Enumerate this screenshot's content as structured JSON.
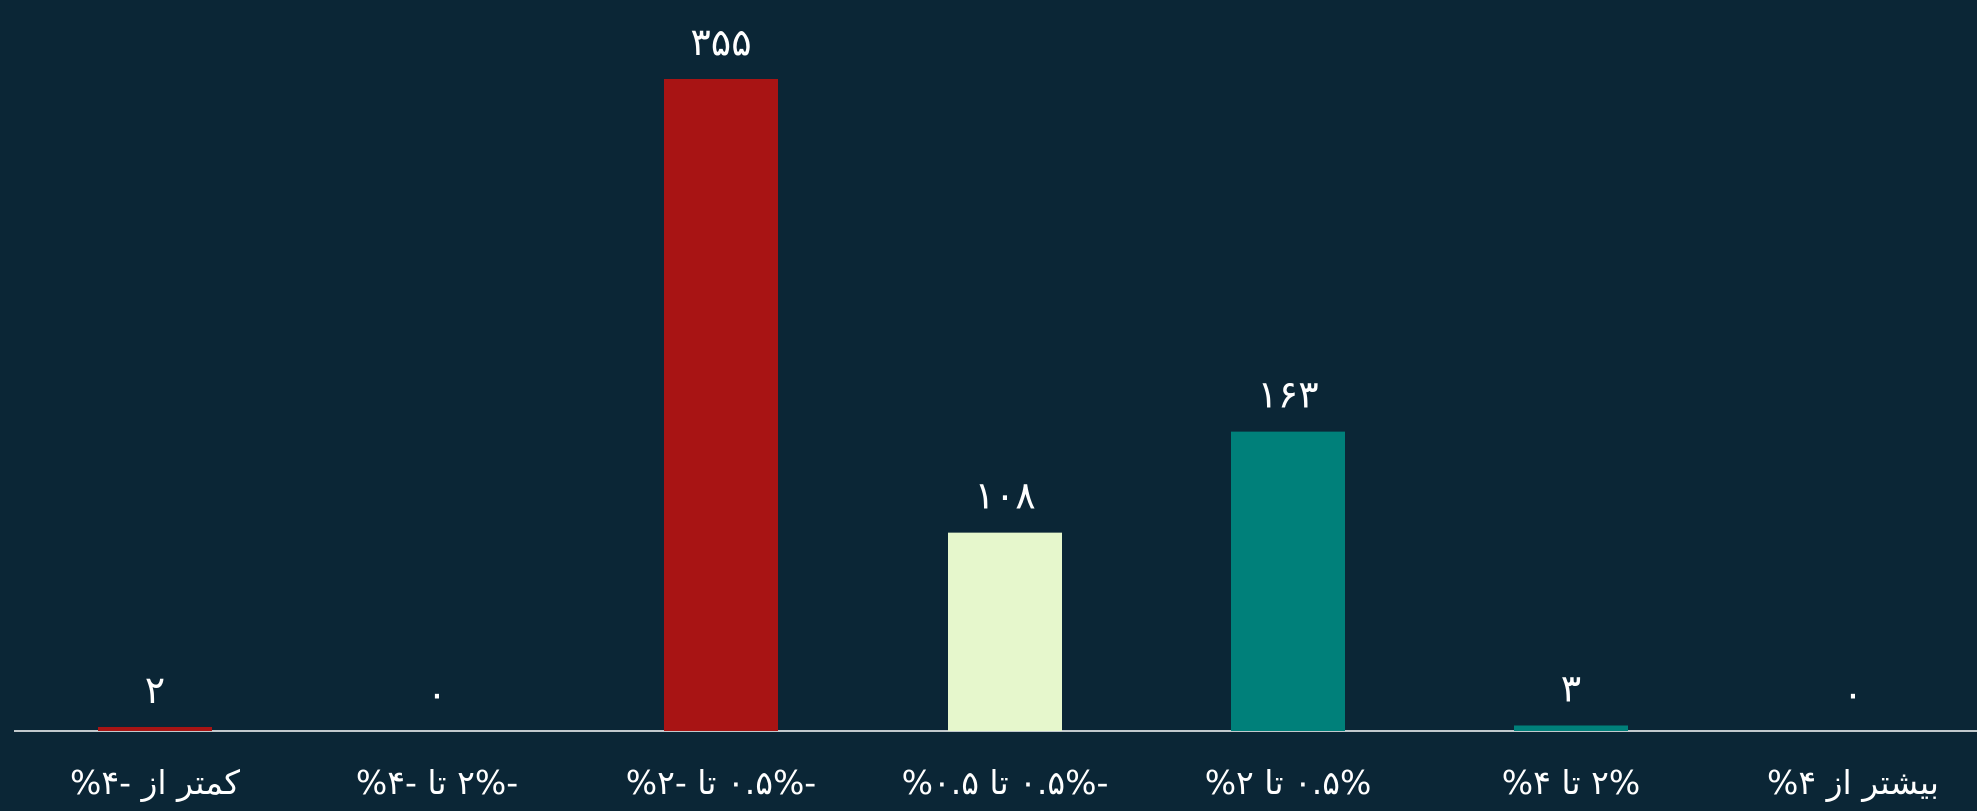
{
  "chart_data": {
    "type": "bar",
    "categories": [
      "کمتر از -۴%",
      "-۲% تا -۴%",
      "-۰.۵% تا -۲%",
      "-۰.۵% تا ۰.۵%",
      "۰.۵% تا ۲%",
      "۲% تا ۴%",
      "بیشتر از ۴%"
    ],
    "values": [
      2,
      0,
      355,
      108,
      163,
      3,
      0
    ],
    "value_labels": [
      "۲",
      "۰",
      "۳۵۵",
      "۱۰۸",
      "۱۶۳",
      "۳",
      "۰"
    ],
    "bar_colors": [
      "#a81414",
      "#a81414",
      "#a81414",
      "#e6f7cc",
      "#00807a",
      "#00807a",
      "#00807a"
    ],
    "ylim": [
      0,
      355
    ],
    "grid": false,
    "legend": "none",
    "background": "#0b2636",
    "axis_color": "#ffffff",
    "text_color": "#ffffff"
  }
}
